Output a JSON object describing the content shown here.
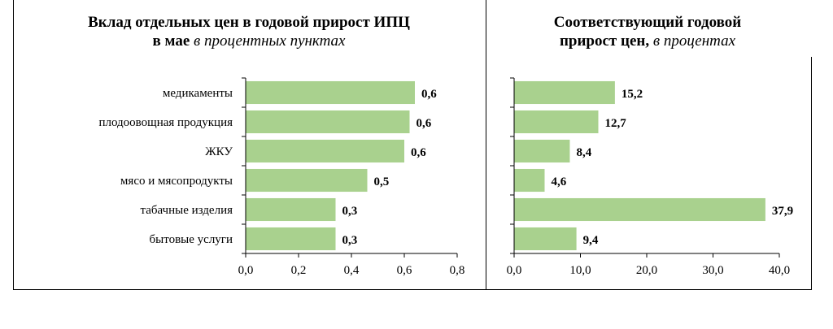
{
  "chart_data": [
    {
      "type": "bar",
      "orientation": "horizontal",
      "title_bold_1": "Вклад отдельных цен в годовой прирост ИПЦ",
      "title_bold_2": "в мае",
      "title_italic": "в процентных пунктах",
      "categories": [
        "медикаменты",
        "плодоовощная продукция",
        "ЖКУ",
        "мясо и мясопродукты",
        "табачные изделия",
        "бытовые услуги"
      ],
      "values": [
        0.64,
        0.62,
        0.6,
        0.46,
        0.34,
        0.34
      ],
      "data_labels": [
        "0,6",
        "0,6",
        "0,6",
        "0,5",
        "0,3",
        "0,3"
      ],
      "xlim": [
        0,
        0.8
      ],
      "xticks": [
        "0,0",
        "0,2",
        "0,4",
        "0,6",
        "0,8"
      ],
      "grid": false,
      "color": "#a9d18e"
    },
    {
      "type": "bar",
      "orientation": "horizontal",
      "title_bold_1": "Соответствующий годовой",
      "title_bold_2": "прирост цен,",
      "title_italic": "в процентах",
      "categories": [
        "медикаменты",
        "плодоовощная продукция",
        "ЖКУ",
        "мясо и мясопродукты",
        "табачные изделия",
        "бытовые услуги"
      ],
      "values": [
        15.2,
        12.7,
        8.4,
        4.6,
        37.9,
        9.4
      ],
      "data_labels": [
        "15,2",
        "12,7",
        "8,4",
        "4,6",
        "37,9",
        "9,4"
      ],
      "xlim": [
        0,
        40
      ],
      "xticks": [
        "0,0",
        "10,0",
        "20,0",
        "30,0",
        "40,0"
      ],
      "grid": false,
      "color": "#a9d18e"
    }
  ]
}
